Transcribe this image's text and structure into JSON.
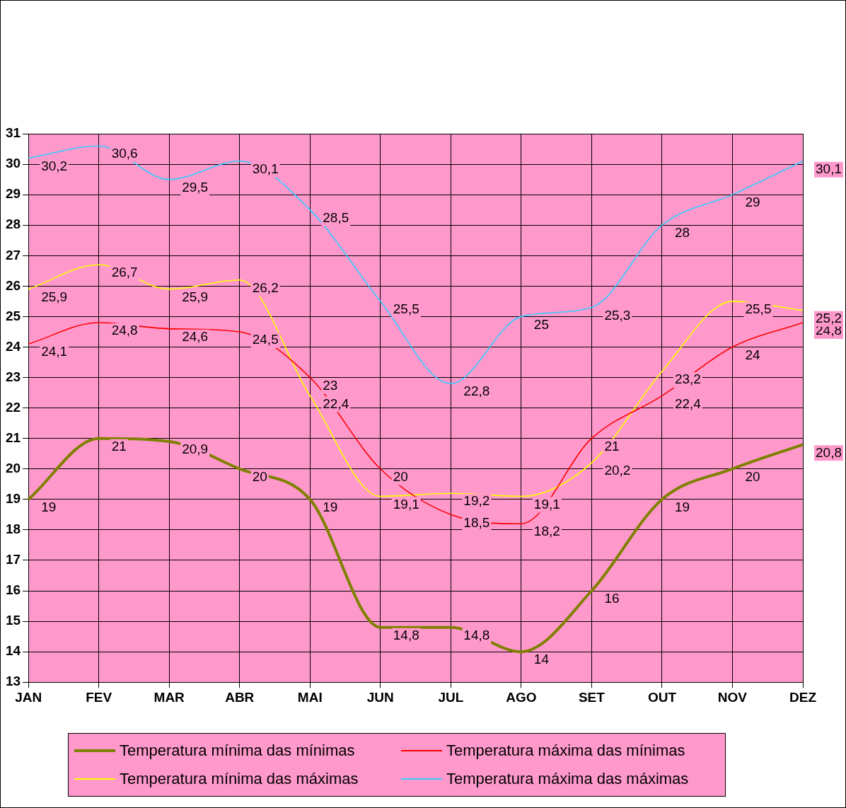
{
  "chart_data": {
    "type": "line",
    "categories": [
      "JAN",
      "FEV",
      "MAR",
      "ABR",
      "MAI",
      "JUN",
      "JUL",
      "AGO",
      "SET",
      "OUT",
      "NOV",
      "DEZ"
    ],
    "series": [
      {
        "name": "Temperatura mínima das mínimas",
        "color": "#808000",
        "values": [
          19,
          21,
          20.9,
          20,
          19,
          14.8,
          14.8,
          14,
          16,
          19,
          20,
          20.8
        ],
        "value_labels": [
          "19",
          "21",
          "20,9",
          "20",
          "19",
          "14,8",
          "14,8",
          "14",
          "16",
          "19",
          "20",
          "20,8"
        ]
      },
      {
        "name": "Temperatura máxima das mínimas",
        "color": "#ff0000",
        "values": [
          24.1,
          24.8,
          24.6,
          24.5,
          23,
          20,
          18.5,
          18.2,
          21,
          22.4,
          24,
          24.8
        ],
        "value_labels": [
          "24,1",
          "24,8",
          "24,6",
          "24,5",
          "23",
          "20",
          "18,5",
          "18,2",
          "21",
          "22,4",
          "24",
          "24,8"
        ]
      },
      {
        "name": "Temperatura mínima das máximas",
        "color": "#ffff00",
        "values": [
          25.9,
          26.7,
          25.9,
          26.2,
          22.4,
          19.1,
          19.2,
          19.1,
          20.2,
          23.2,
          25.5,
          25.2
        ],
        "value_labels": [
          "25,9",
          "26,7",
          "25,9",
          "26,2",
          "22,4",
          "19,1",
          "19,2",
          "19,1",
          "20,2",
          "23,2",
          "25,5",
          "25,2"
        ]
      },
      {
        "name": "Temperatura máxima das máximas",
        "color": "#33ccff",
        "values": [
          30.2,
          30.6,
          29.5,
          30.1,
          28.5,
          25.5,
          22.8,
          25,
          25.3,
          28,
          29,
          30.1
        ],
        "value_labels": [
          "30,2",
          "30,6",
          "29,5",
          "30,1",
          "28,5",
          "25,5",
          "22,8",
          "25",
          "25,3",
          "28",
          "29",
          "30,1"
        ]
      }
    ],
    "ylim": [
      13,
      31
    ],
    "yticks": [
      13,
      14,
      15,
      16,
      17,
      18,
      19,
      20,
      21,
      22,
      23,
      24,
      25,
      26,
      27,
      28,
      29,
      30,
      31
    ],
    "grid": true,
    "legend": "bottom",
    "marker": "none",
    "line_style": "solid"
  }
}
